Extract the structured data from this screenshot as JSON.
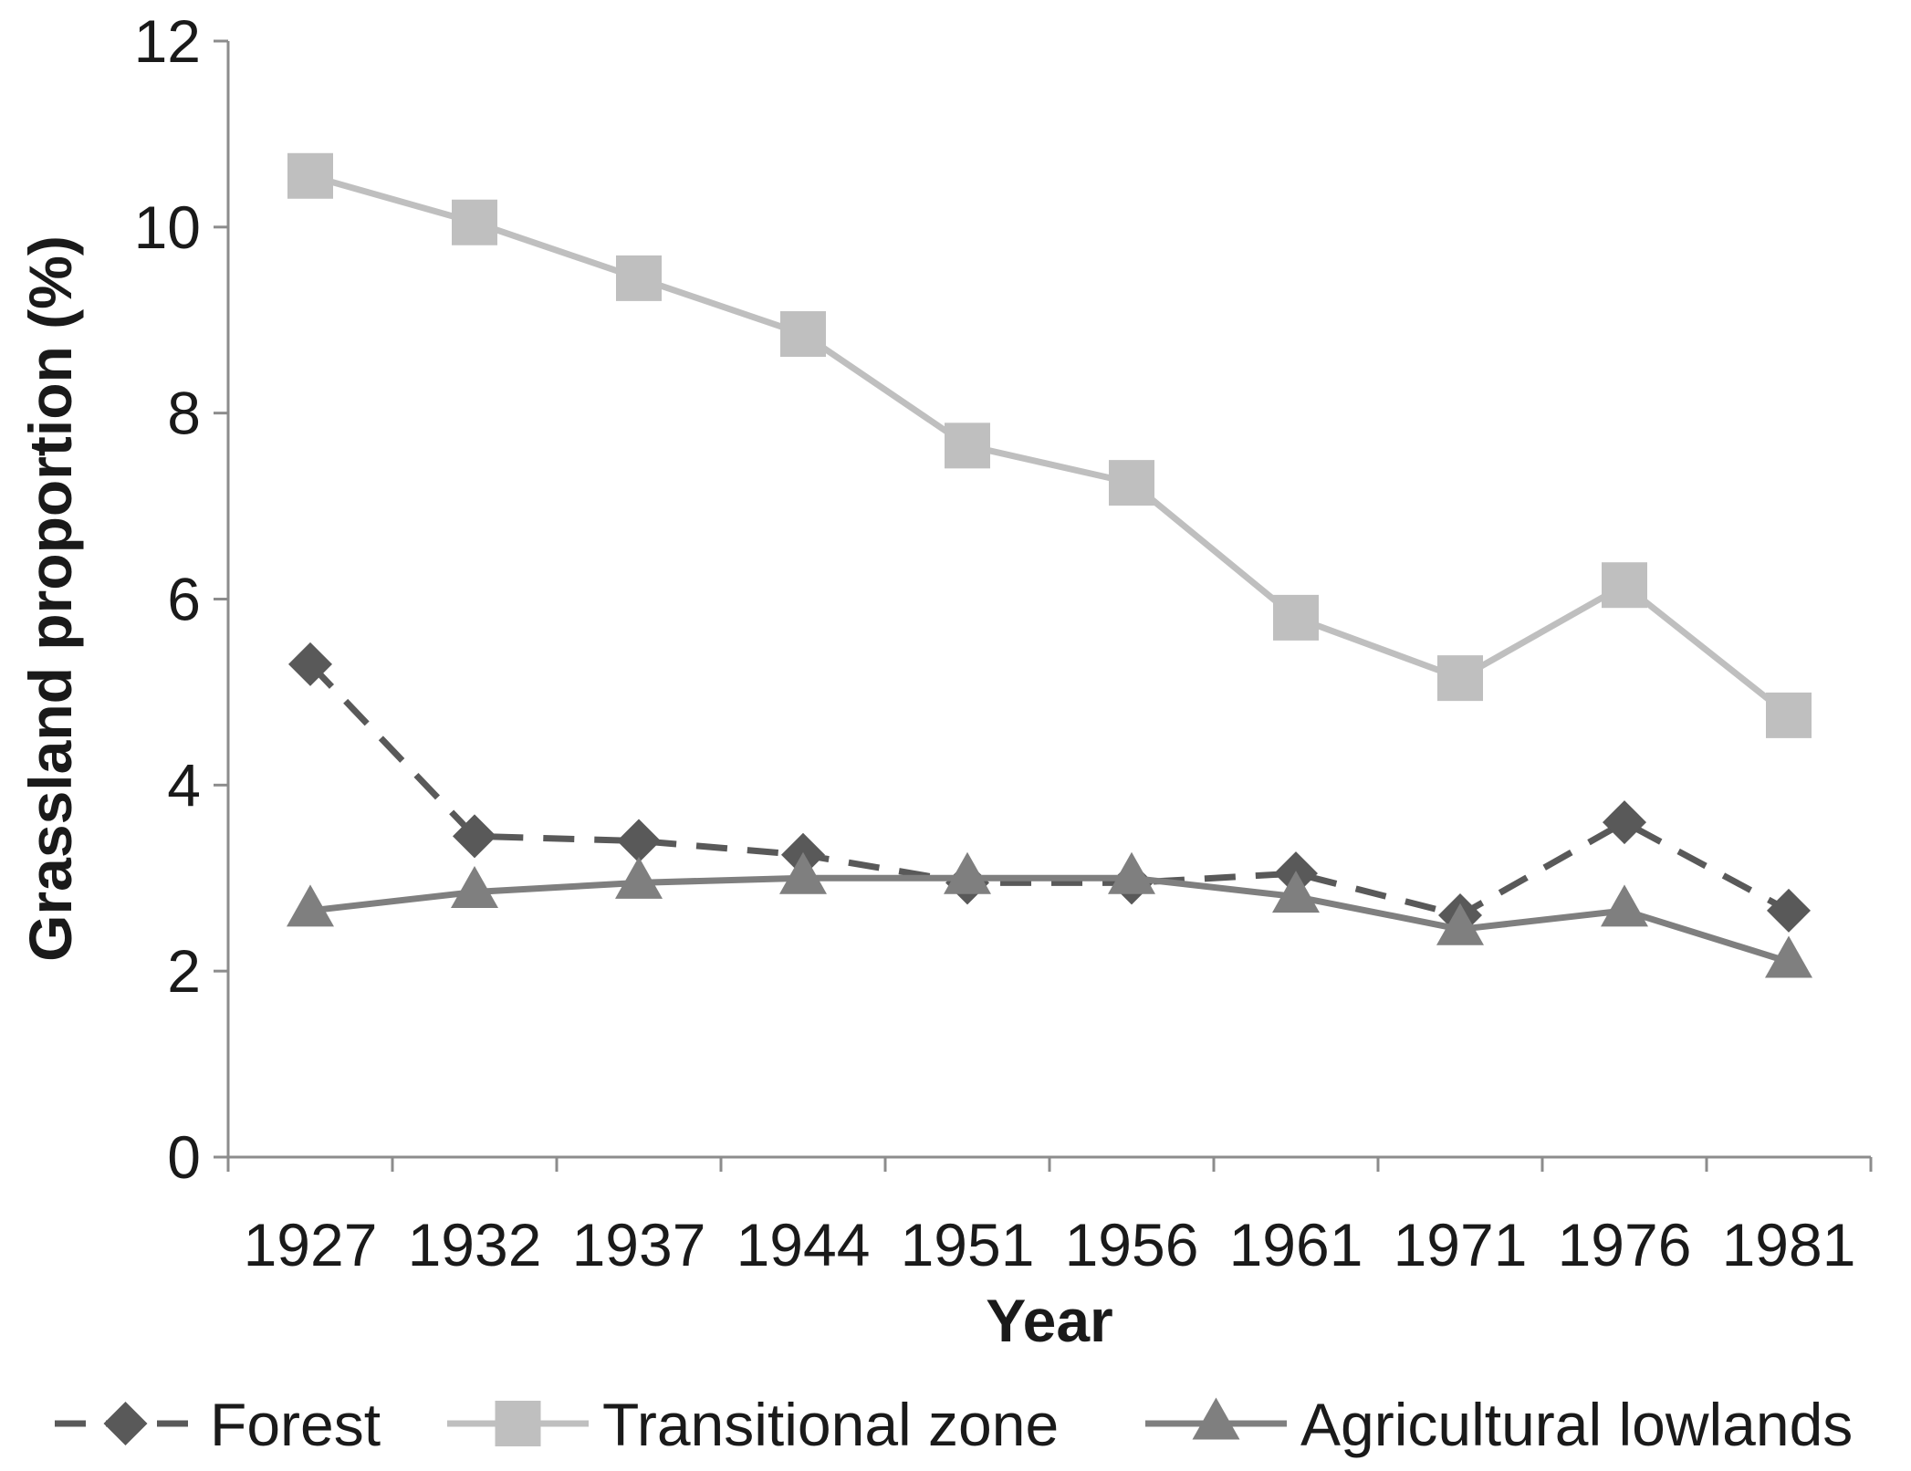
{
  "chart_data": {
    "type": "line",
    "xlabel": "Year",
    "ylabel": "Grassland proportion (%)",
    "categories": [
      "1927",
      "1932",
      "1937",
      "1944",
      "1951",
      "1956",
      "1961",
      "1971",
      "1976",
      "1981"
    ],
    "ylim": [
      0,
      12
    ],
    "yticks": [
      "0",
      "2",
      "4",
      "6",
      "8",
      "10",
      "12"
    ],
    "grid": false,
    "legend_position": "bottom",
    "series": [
      {
        "name": "Forest",
        "values": [
          5.3,
          3.45,
          3.4,
          3.25,
          2.95,
          2.95,
          3.05,
          2.6,
          3.6,
          2.65
        ],
        "color": "#595959",
        "line_style": "dashed",
        "marker": "diamond"
      },
      {
        "name": "Transitional zone",
        "values": [
          10.55,
          10.05,
          9.45,
          8.85,
          7.65,
          7.25,
          5.8,
          5.15,
          6.15,
          4.75
        ],
        "color": "#bfbfbf",
        "line_style": "solid",
        "marker": "square"
      },
      {
        "name": "Agricultural lowlands",
        "values": [
          2.65,
          2.85,
          2.95,
          3.0,
          3.0,
          3.0,
          2.8,
          2.45,
          2.65,
          2.1
        ],
        "color": "#7f7f7f",
        "line_style": "solid",
        "marker": "triangle"
      }
    ]
  }
}
